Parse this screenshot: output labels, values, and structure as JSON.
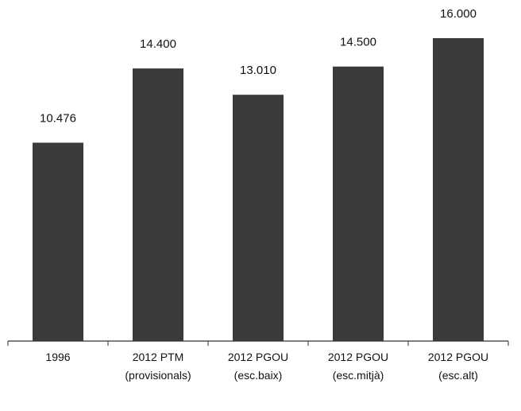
{
  "chart_data": {
    "type": "bar",
    "categories": [
      [
        "1996"
      ],
      [
        "2012 PTM",
        "(provisionals)"
      ],
      [
        "2012 PGOU",
        "(esc.baix)"
      ],
      [
        "2012 PGOU",
        "(esc.mitjà)"
      ],
      [
        "2012 PGOU",
        "(esc.alt)"
      ]
    ],
    "values": [
      10476,
      14400,
      13010,
      14500,
      16000
    ],
    "value_labels": [
      "10.476",
      "14.400",
      "13.010",
      "14.500",
      "16.000"
    ],
    "title": "",
    "xlabel": "",
    "ylabel": "",
    "ylim": [
      0,
      16000
    ],
    "grid": false,
    "legend": "none",
    "bar_color": "#3a3a3a"
  }
}
